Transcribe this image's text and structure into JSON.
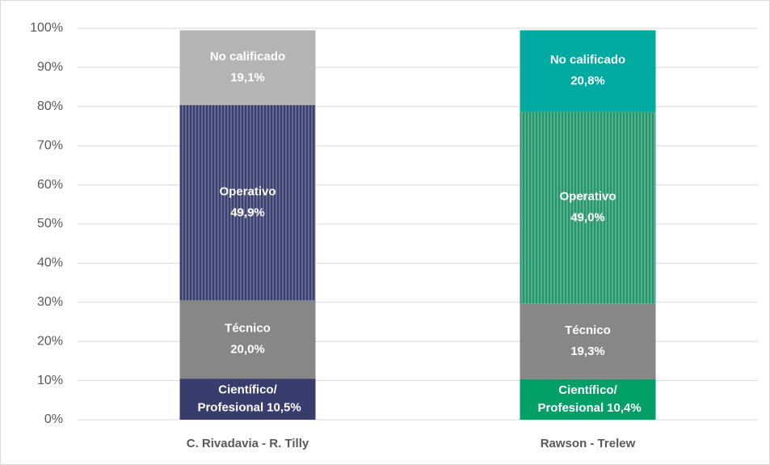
{
  "chart_data": {
    "type": "stacked_bar",
    "categories": [
      "C. Rivadavia - R. Tilly",
      "Rawson - Trelew"
    ],
    "series": [
      {
        "name": "Científico/ Profesional",
        "colors": [
          "#383d6e",
          "#00a067"
        ],
        "hatch": false,
        "values": [
          10.5,
          10.4
        ],
        "value_labels": [
          "10,5%",
          "10,4%"
        ]
      },
      {
        "name": "Técnico",
        "colors": [
          "#878787",
          "#878787"
        ],
        "hatch": false,
        "values": [
          20.0,
          19.3
        ],
        "value_labels": [
          "20,0%",
          "19,3%"
        ]
      },
      {
        "name": "Operativo",
        "colors": [
          "#3a3f6f",
          "#23976b"
        ],
        "hatch": true,
        "values": [
          49.9,
          49.0
        ],
        "value_labels": [
          "49,9%",
          "49,0%"
        ]
      },
      {
        "name": "No calificado",
        "colors": [
          "#b4b4b4",
          "#00aaa0"
        ],
        "hatch": false,
        "values": [
          19.1,
          20.8
        ],
        "value_labels": [
          "19,1%",
          "20,8%"
        ]
      }
    ],
    "ylim": [
      0,
      100
    ],
    "yticks": [
      {
        "value": 0,
        "label": "0%"
      },
      {
        "value": 10,
        "label": "10%"
      },
      {
        "value": 20,
        "label": "20%"
      },
      {
        "value": 30,
        "label": "30%"
      },
      {
        "value": 40,
        "label": "40%"
      },
      {
        "value": 50,
        "label": "50%"
      },
      {
        "value": 60,
        "label": "60%"
      },
      {
        "value": 70,
        "label": "70%"
      },
      {
        "value": 80,
        "label": "80%"
      },
      {
        "value": 90,
        "label": "90%"
      },
      {
        "value": 100,
        "label": "100%"
      }
    ],
    "grid": true
  }
}
